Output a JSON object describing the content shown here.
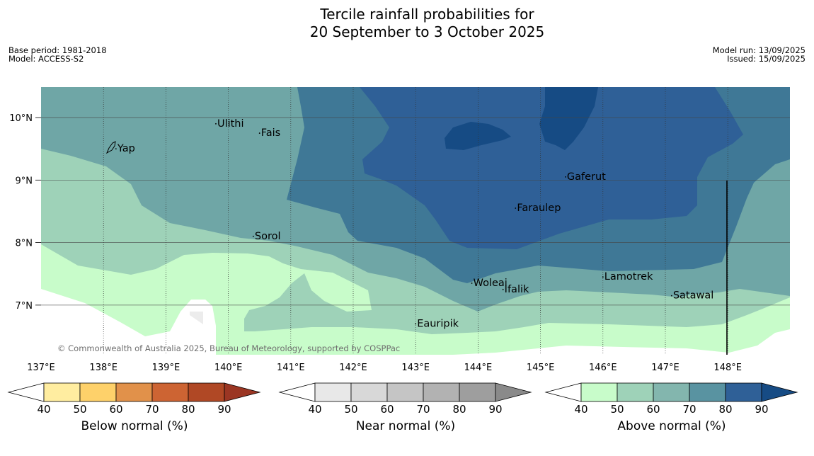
{
  "title": {
    "line1": "Tercile rainfall probabilities for",
    "line2": "20 September to 3 October 2025"
  },
  "meta": {
    "base_period": "Base period: 1981-2018",
    "model": "Model: ACCESS-S2",
    "model_run": "Model run: 13/09/2025",
    "issued": "Issued: 15/09/2025"
  },
  "map": {
    "lon_range": [
      137,
      149
    ],
    "lat_range": [
      6.3,
      10.5
    ],
    "lon_ticks": [
      "137°E",
      "138°E",
      "139°E",
      "140°E",
      "141°E",
      "142°E",
      "143°E",
      "144°E",
      "145°E",
      "146°E",
      "147°E",
      "148°E"
    ],
    "lat_ticks": [
      "10°N",
      "9°N",
      "8°N",
      "7°N"
    ],
    "places": [
      {
        "name": "Yap",
        "lon": 138.2,
        "lat": 9.5
      },
      {
        "name": "Ulithi",
        "lon": 139.8,
        "lat": 9.9
      },
      {
        "name": "Fais",
        "lon": 140.5,
        "lat": 9.75
      },
      {
        "name": "Sorol",
        "lon": 140.4,
        "lat": 8.1
      },
      {
        "name": "Gaferut",
        "lon": 145.4,
        "lat": 9.05
      },
      {
        "name": "Faraulep",
        "lon": 144.6,
        "lat": 8.55
      },
      {
        "name": "Lamotrek",
        "lon": 146.0,
        "lat": 7.45
      },
      {
        "name": "Woleai",
        "lon": 143.9,
        "lat": 7.35
      },
      {
        "name": "Ifalik",
        "lon": 144.4,
        "lat": 7.25
      },
      {
        "name": "Satawal",
        "lon": 147.1,
        "lat": 7.15
      },
      {
        "name": "Eauripik",
        "lon": 143.0,
        "lat": 6.7
      }
    ],
    "copyright": "© Commonwealth of Australia 2025, Bureau of Meteorology, supported by COSPPac"
  },
  "legends": [
    {
      "label": "Below normal (%)",
      "ticks": [
        "40",
        "50",
        "60",
        "70",
        "80",
        "90"
      ],
      "colors": [
        "#ffffff",
        "#ffeda0",
        "#fed16a",
        "#e1914a",
        "#cd6433",
        "#b04825",
        "#9b3623"
      ]
    },
    {
      "label": "Near normal (%)",
      "ticks": [
        "40",
        "50",
        "60",
        "70",
        "80",
        "90"
      ],
      "colors": [
        "#ffffff",
        "#e8e8e8",
        "#d8d8d8",
        "#c5c5c5",
        "#b2b2b2",
        "#9e9e9e",
        "#8a8a8a"
      ]
    },
    {
      "label": "Above normal (%)",
      "ticks": [
        "40",
        "50",
        "60",
        "70",
        "80",
        "90"
      ],
      "colors": [
        "#ffffff",
        "#c8fcca",
        "#9ed2b8",
        "#83b6ae",
        "#5993a1",
        "#2f6097",
        "#164b84"
      ]
    }
  ]
}
